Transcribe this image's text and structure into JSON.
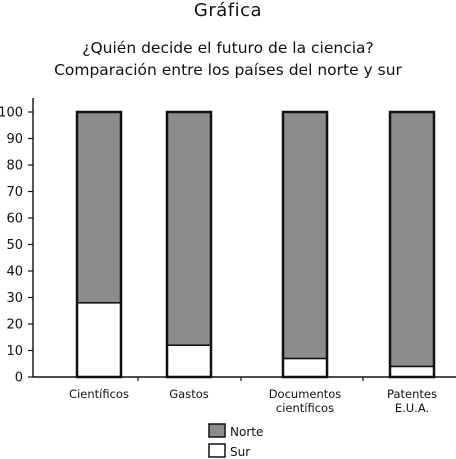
{
  "page": {
    "heading": "Gráfica"
  },
  "chart_data": {
    "type": "bar",
    "stacked": true,
    "title": "¿Quién decide el futuro de la ciencia?",
    "subtitle": "Comparación entre los países del norte y sur",
    "categories": [
      [
        "Científicos"
      ],
      [
        "Gastos"
      ],
      [
        "Documentos",
        "científicos"
      ],
      [
        "Patentes",
        "E.U.A."
      ]
    ],
    "series": [
      {
        "name": "Sur",
        "color": "#ffffff",
        "values": [
          28,
          12,
          7,
          4
        ]
      },
      {
        "name": "Norte",
        "color": "#8c8c8c",
        "values": [
          72,
          88,
          93,
          96
        ]
      }
    ],
    "legend_order": [
      "Norte",
      "Sur"
    ],
    "ylim": [
      0,
      100
    ],
    "yticks": [
      "0",
      "10",
      "20",
      "30",
      "40",
      "50",
      "60",
      "70",
      "80",
      "90",
      "100"
    ],
    "xlabel": "",
    "ylabel": "",
    "grid": false,
    "legend_position": "bottom-center"
  }
}
